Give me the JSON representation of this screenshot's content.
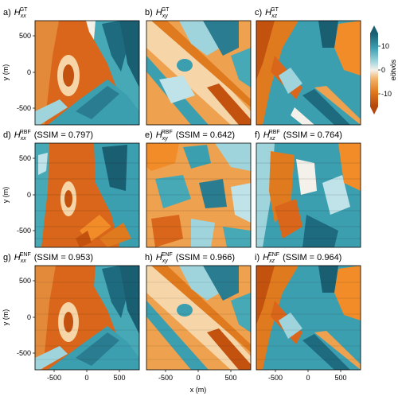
{
  "figure": {
    "colorbar": {
      "ticks": [
        "10",
        "0",
        "-10"
      ],
      "label": "eötvös",
      "colors": [
        "#1a5e72",
        "#3c9fb0",
        "#9fd4dc",
        "#f4f1ea",
        "#f2b36b",
        "#e07a1e",
        "#b3470d"
      ]
    },
    "xlabel": "x (m)",
    "ylabel": "y (m)",
    "x_ticks": [
      "-500",
      "0",
      "500"
    ],
    "y_ticks": [
      "500",
      "0",
      "-500"
    ]
  },
  "panels": [
    {
      "letter": "a)",
      "sub": "xx",
      "sup": "GT",
      "ssim": ""
    },
    {
      "letter": "b)",
      "sub": "xy",
      "sup": "GT",
      "ssim": ""
    },
    {
      "letter": "c)",
      "sub": "xz",
      "sup": "GT",
      "ssim": ""
    },
    {
      "letter": "d)",
      "sub": "xx",
      "sup": "RBF",
      "ssim": "(SSIM = 0.797)"
    },
    {
      "letter": "e)",
      "sub": "xy",
      "sup": "RBF",
      "ssim": "(SSIM = 0.642)"
    },
    {
      "letter": "f)",
      "sub": "xz",
      "sup": "RBF",
      "ssim": "(SSIM = 0.764)"
    },
    {
      "letter": "g)",
      "sub": "xx",
      "sup": "ENF",
      "ssim": "(SSIM = 0.953)"
    },
    {
      "letter": "h)",
      "sub": "xy",
      "sup": "ENF",
      "ssim": "(SSIM = 0.966)"
    },
    {
      "letter": "i)",
      "sub": "xz",
      "sup": "ENF",
      "ssim": "(SSIM = 0.964)"
    }
  ],
  "chart_data": {
    "type": "heatmap",
    "rows": [
      "GT",
      "RBF",
      "ENF"
    ],
    "columns": [
      "xx",
      "xy",
      "xz"
    ],
    "ssim": {
      "RBF": {
        "xx": 0.797,
        "xy": 0.642,
        "xz": 0.764
      },
      "ENF": {
        "xx": 0.953,
        "xy": 0.966,
        "xz": 0.964
      }
    },
    "xlim": [
      -800,
      800
    ],
    "ylim": [
      -800,
      800
    ],
    "colorbar_range": [
      -15,
      15
    ],
    "colorbar_ticks": [
      10,
      0,
      -10
    ],
    "colorbar_units": "eötvös"
  }
}
